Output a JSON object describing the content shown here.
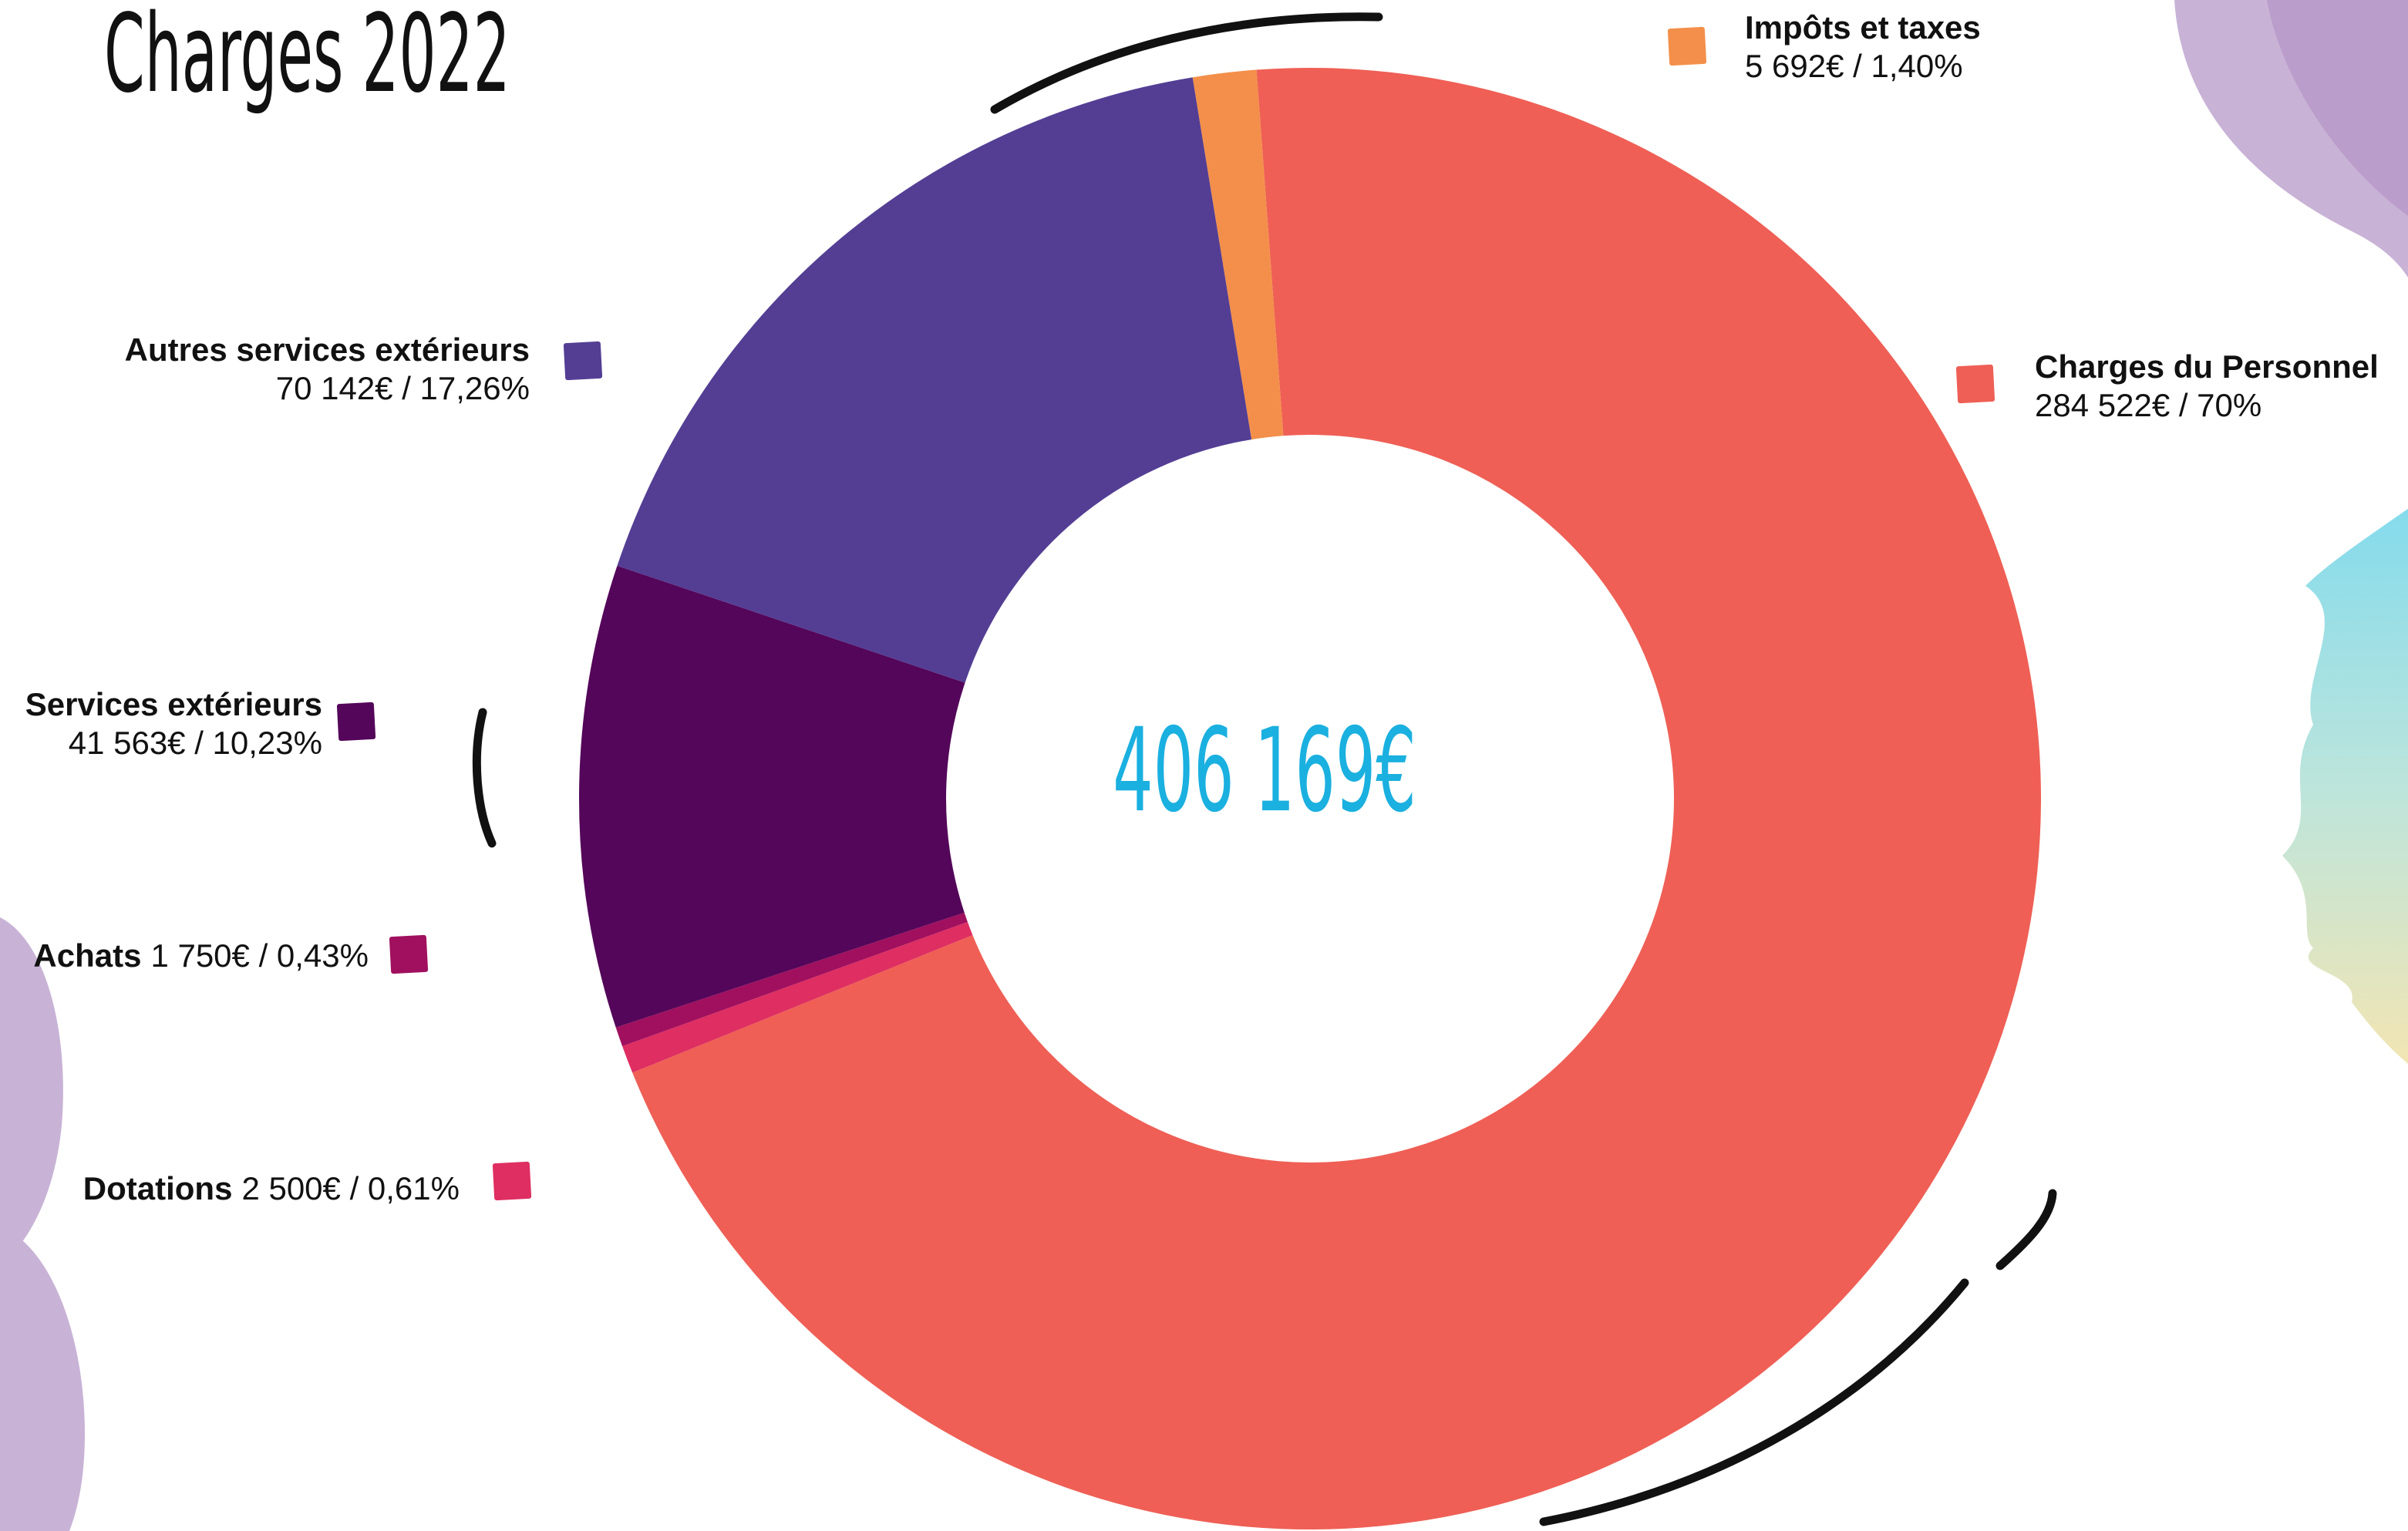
{
  "chart_data": {
    "type": "donut",
    "title": "Charges 2022",
    "categories": [
      "Charges du Personnel",
      "Dotations",
      "Achats",
      "Services extérieurs",
      "Autres services extérieurs",
      "Impôts et taxes"
    ],
    "values": [
      284522,
      2500,
      1750,
      41563,
      70142,
      5692
    ],
    "value_labels": [
      "284 522€ / 70%",
      "2 500€ / 0,61%",
      "1 750€ / 0,43%",
      "41 563€ / 10,23%",
      "70 142€ / 17,26%",
      "5 692€ / 1,40%"
    ],
    "colors": [
      "#ef5f55",
      "#de2e62",
      "#a0105e",
      "#54065a",
      "#533e94",
      "#f38f4a"
    ],
    "total": {
      "value": 406169,
      "label": "406 169€"
    }
  }
}
